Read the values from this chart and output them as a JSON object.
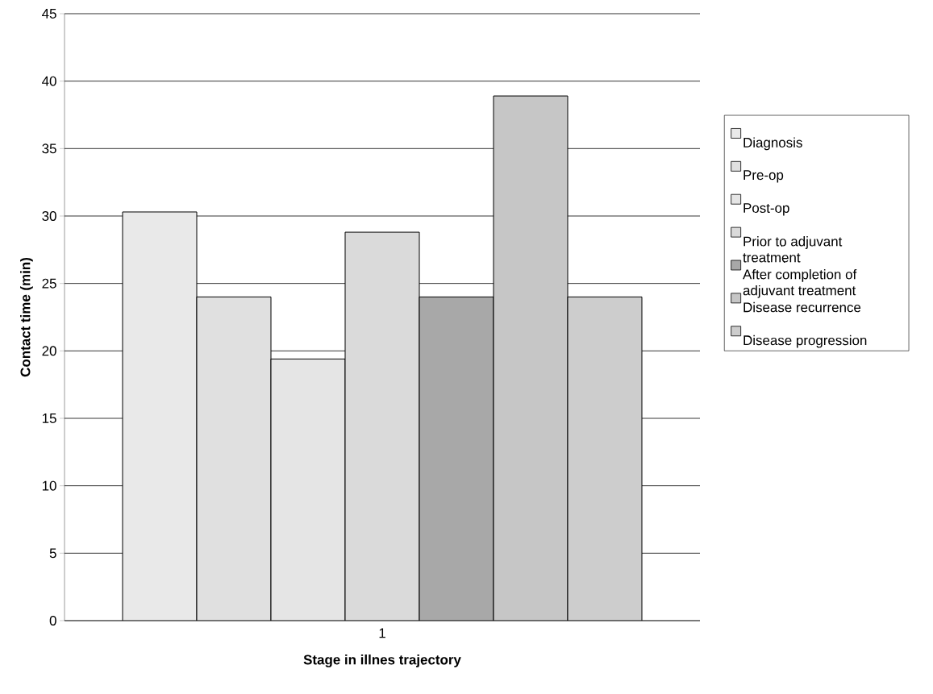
{
  "chart_data": {
    "type": "bar",
    "xlabel": "Stage in illnes trajectory",
    "ylabel": "Contact time (min)",
    "categories": [
      "1"
    ],
    "series": [
      {
        "name": "Diagnosis",
        "color": "#e9e9e9",
        "values": [
          30.3
        ]
      },
      {
        "name": "Pre-op",
        "color": "#e0e0e0",
        "values": [
          24.0
        ]
      },
      {
        "name": "Post-op",
        "color": "#e5e5e5",
        "values": [
          19.4
        ]
      },
      {
        "name": "Prior to adjuvant treatment",
        "color": "#dadada",
        "values": [
          28.8
        ]
      },
      {
        "name": "After completion of adjuvant treatment",
        "color": "#a8a8a8",
        "values": [
          24.0
        ]
      },
      {
        "name": "Disease recurrence",
        "color": "#c6c6c6",
        "values": [
          38.9
        ]
      },
      {
        "name": "Disease progression",
        "color": "#cdcdcd",
        "values": [
          24.0
        ]
      }
    ],
    "ylim": [
      0,
      45
    ],
    "yticks": [
      0,
      5,
      10,
      15,
      20,
      25,
      30,
      35,
      40,
      45
    ],
    "grid": "y",
    "legend": "right"
  }
}
